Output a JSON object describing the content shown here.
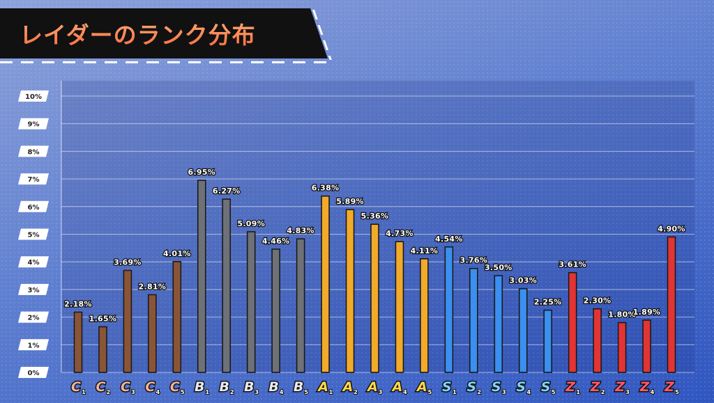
{
  "title": "レイダーのランク分布",
  "chart_data": {
    "type": "bar",
    "ylim": [
      0,
      10
    ],
    "y_ticks": [
      "0%",
      "1%",
      "2%",
      "3%",
      "4%",
      "5%",
      "6%",
      "7%",
      "8%",
      "9%",
      "10%"
    ],
    "grid": true,
    "categories": [
      {
        "letter": "C",
        "sub": "1",
        "group": "C"
      },
      {
        "letter": "C",
        "sub": "2",
        "group": "C"
      },
      {
        "letter": "C",
        "sub": "3",
        "group": "C"
      },
      {
        "letter": "C",
        "sub": "4",
        "group": "C"
      },
      {
        "letter": "C",
        "sub": "5",
        "group": "C"
      },
      {
        "letter": "B",
        "sub": "1",
        "group": "B"
      },
      {
        "letter": "B",
        "sub": "2",
        "group": "B"
      },
      {
        "letter": "B",
        "sub": "3",
        "group": "B"
      },
      {
        "letter": "B",
        "sub": "4",
        "group": "B"
      },
      {
        "letter": "B",
        "sub": "5",
        "group": "B"
      },
      {
        "letter": "A",
        "sub": "1",
        "group": "A"
      },
      {
        "letter": "A",
        "sub": "2",
        "group": "A"
      },
      {
        "letter": "A",
        "sub": "3",
        "group": "A"
      },
      {
        "letter": "A",
        "sub": "4",
        "group": "A"
      },
      {
        "letter": "A",
        "sub": "5",
        "group": "A"
      },
      {
        "letter": "S",
        "sub": "1",
        "group": "S"
      },
      {
        "letter": "S",
        "sub": "2",
        "group": "S"
      },
      {
        "letter": "S",
        "sub": "3",
        "group": "S"
      },
      {
        "letter": "S",
        "sub": "4",
        "group": "S"
      },
      {
        "letter": "S",
        "sub": "5",
        "group": "S"
      },
      {
        "letter": "Z",
        "sub": "1",
        "group": "Z"
      },
      {
        "letter": "Z",
        "sub": "2",
        "group": "Z"
      },
      {
        "letter": "Z",
        "sub": "3",
        "group": "Z"
      },
      {
        "letter": "Z",
        "sub": "4",
        "group": "Z"
      },
      {
        "letter": "Z",
        "sub": "5",
        "group": "Z"
      }
    ],
    "values": [
      2.18,
      1.65,
      3.69,
      2.81,
      4.01,
      6.95,
      6.27,
      5.09,
      4.46,
      4.83,
      6.38,
      5.89,
      5.36,
      4.73,
      4.11,
      4.54,
      3.76,
      3.5,
      3.03,
      2.25,
      3.61,
      2.3,
      1.8,
      1.89,
      4.9
    ],
    "value_labels": [
      "2.18%",
      "1.65%",
      "3.69%",
      "2.81%",
      "4.01%",
      "6.95%",
      "6.27%",
      "5.09%",
      "4.46%",
      "4.83%",
      "6.38%",
      "5.89%",
      "5.36%",
      "4.73%",
      "4.11%",
      "4.54%",
      "3.76%",
      "3.50%",
      "3.03%",
      "2.25%",
      "3.61%",
      "2.30%",
      "1.80%",
      "1.89%",
      "4.90%"
    ],
    "group_colors": {
      "C": "#8a5537",
      "B": "#6e7178",
      "A": "#f2aa2a",
      "S": "#3a8ff0",
      "Z": "#e23434"
    },
    "badge_colors": {
      "C": "#f0b49a",
      "B": "#e8eaee",
      "A": "#ffd84a",
      "S": "#7fd6ff",
      "Z": "#ff5a6a"
    }
  }
}
